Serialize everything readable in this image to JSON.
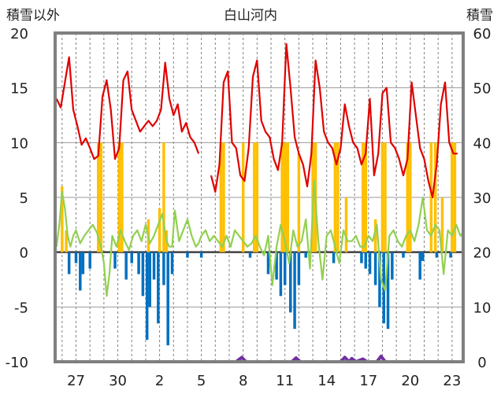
{
  "chart_data": {
    "type": "line",
    "title": "白山河内",
    "left_axis_title": "積雪以外",
    "right_axis_title": "積雪",
    "left_ylim": [
      -10,
      20
    ],
    "left_yticks": [
      "-10",
      "-5",
      "0",
      "5",
      "10",
      "15",
      "20"
    ],
    "right_ylim": [
      0,
      60
    ],
    "right_yticks": [
      "0",
      "10",
      "20",
      "30",
      "40",
      "50",
      "60"
    ],
    "x_tick_labels": [
      "27",
      "30",
      "2",
      "5",
      "8",
      "11",
      "14",
      "17",
      "20",
      "23"
    ],
    "x_range_days": [
      25.5,
      54.8
    ],
    "grid": "dashed vertical daily, solid horizontal",
    "colors": {
      "snow_depth": "#7030a0",
      "red_series": "#e00000",
      "orange_bars": "#ffc000",
      "green_series": "#92d050",
      "blue_bars": "#0070c0"
    },
    "series": [
      {
        "key": "red_series",
        "axis": "left",
        "points": [
          [
            25.6,
            14
          ],
          [
            25.9,
            13.2
          ],
          [
            26.2,
            15.5
          ],
          [
            26.5,
            17.8
          ],
          [
            26.8,
            13
          ],
          [
            27.1,
            11.5
          ],
          [
            27.4,
            9.8
          ],
          [
            27.7,
            10.4
          ],
          [
            28.0,
            9.5
          ],
          [
            28.3,
            8.5
          ],
          [
            28.6,
            8.8
          ],
          [
            28.9,
            14.2
          ],
          [
            29.2,
            15.7
          ],
          [
            29.5,
            13.0
          ],
          [
            29.8,
            8.5
          ],
          [
            30.1,
            9.5
          ],
          [
            30.4,
            15.7
          ],
          [
            30.7,
            16.5
          ],
          [
            31.0,
            13.0
          ],
          [
            31.3,
            12.0
          ],
          [
            31.6,
            11.0
          ],
          [
            31.9,
            11.5
          ],
          [
            32.2,
            12.0
          ],
          [
            32.5,
            11.5
          ],
          [
            32.8,
            12.0
          ],
          [
            33.1,
            13.0
          ],
          [
            33.4,
            17.3
          ],
          [
            33.7,
            14.0
          ],
          [
            34.0,
            12.5
          ],
          [
            34.3,
            13.5
          ],
          [
            34.6,
            11.0
          ],
          [
            34.9,
            11.8
          ],
          [
            35.2,
            10.5
          ],
          [
            35.5,
            10.0
          ],
          [
            35.8,
            9.0
          ],
          null,
          [
            36.7,
            7.0
          ],
          [
            37.0,
            5.5
          ],
          [
            37.3,
            8.0
          ],
          [
            37.6,
            15.5
          ],
          [
            37.9,
            16.5
          ],
          [
            38.2,
            10.0
          ],
          [
            38.5,
            9.5
          ],
          [
            38.8,
            7.0
          ],
          [
            39.1,
            6.5
          ],
          [
            39.4,
            9.5
          ],
          [
            39.7,
            16.0
          ],
          [
            40.0,
            17.5
          ],
          [
            40.3,
            12.0
          ],
          [
            40.6,
            11.0
          ],
          [
            40.9,
            10.5
          ],
          [
            41.2,
            8.5
          ],
          [
            41.5,
            7.5
          ],
          [
            41.8,
            10.0
          ],
          [
            42.1,
            19.0
          ],
          [
            42.4,
            15.0
          ],
          [
            42.7,
            10.5
          ],
          [
            43.0,
            9.0
          ],
          [
            43.3,
            8.0
          ],
          [
            43.6,
            6.0
          ],
          [
            43.9,
            9.0
          ],
          [
            44.2,
            17.5
          ],
          [
            44.5,
            15.0
          ],
          [
            44.8,
            11.0
          ],
          [
            45.1,
            10.0
          ],
          [
            45.4,
            9.5
          ],
          [
            45.7,
            8.0
          ],
          [
            46.0,
            9.5
          ],
          [
            46.3,
            13.5
          ],
          [
            46.6,
            11.5
          ],
          [
            46.9,
            10.0
          ],
          [
            47.2,
            9.5
          ],
          [
            47.5,
            8.0
          ],
          [
            47.8,
            9.0
          ],
          [
            48.1,
            14.0
          ],
          [
            48.4,
            7.0
          ],
          [
            48.7,
            9.0
          ],
          [
            49.0,
            14.5
          ],
          [
            49.3,
            15.0
          ],
          [
            49.6,
            10.0
          ],
          [
            49.9,
            9.5
          ],
          [
            50.2,
            8.5
          ],
          [
            50.5,
            7.0
          ],
          [
            50.8,
            8.5
          ],
          [
            51.1,
            15.5
          ],
          [
            51.4,
            12.5
          ],
          [
            51.7,
            9.5
          ],
          [
            52.0,
            8.5
          ],
          [
            52.3,
            6.5
          ],
          [
            52.6,
            5.0
          ],
          [
            52.9,
            8.0
          ],
          [
            53.2,
            13.5
          ],
          [
            53.5,
            15.5
          ],
          [
            53.8,
            10.0
          ],
          [
            54.1,
            9.0
          ],
          [
            54.4,
            9.0
          ]
        ]
      },
      {
        "key": "green_series",
        "axis": "left",
        "points": [
          [
            25.6,
            0.5
          ],
          [
            25.8,
            2.5
          ],
          [
            26.0,
            5.5
          ],
          [
            26.2,
            4.0
          ],
          [
            26.4,
            1.5
          ],
          [
            26.6,
            0.5
          ],
          [
            26.8,
            1.5
          ],
          [
            27.0,
            2.0
          ],
          [
            27.3,
            0.8
          ],
          [
            27.6,
            1.5
          ],
          [
            27.9,
            2.0
          ],
          [
            28.2,
            2.5
          ],
          [
            28.5,
            1.8
          ],
          [
            28.8,
            0.5
          ],
          [
            29.0,
            -1.0
          ],
          [
            29.2,
            -4.0
          ],
          [
            29.4,
            -2.0
          ],
          [
            29.6,
            1.5
          ],
          [
            29.9,
            0.5
          ],
          [
            30.2,
            2.0
          ],
          [
            30.5,
            1.0
          ],
          [
            30.8,
            0.2
          ],
          [
            31.1,
            1.5
          ],
          [
            31.4,
            2.0
          ],
          [
            31.7,
            1.0
          ],
          [
            32.0,
            2.5
          ],
          [
            32.3,
            0.8
          ],
          [
            32.6,
            1.5
          ],
          [
            32.9,
            2.5
          ],
          [
            33.2,
            3.5
          ],
          [
            33.5,
            1.0
          ],
          [
            33.7,
            0.5
          ],
          [
            33.9,
            0.5
          ],
          [
            34.1,
            3.8
          ],
          [
            34.4,
            1.0
          ],
          [
            34.7,
            2.0
          ],
          [
            35.0,
            3.0
          ],
          [
            35.3,
            1.5
          ],
          [
            35.6,
            0.5
          ],
          [
            35.8,
            0.8
          ],
          [
            36.0,
            1.5
          ],
          [
            36.3,
            2.0
          ],
          [
            36.6,
            1.0
          ],
          [
            36.9,
            1.5
          ],
          [
            37.2,
            1.0
          ],
          [
            37.5,
            0.5
          ],
          [
            37.8,
            1.5
          ],
          [
            38.1,
            0.5
          ],
          [
            38.4,
            2.0
          ],
          [
            38.7,
            1.5
          ],
          [
            39.0,
            1.0
          ],
          [
            39.3,
            0.5
          ],
          [
            39.6,
            0.8
          ],
          [
            39.9,
            1.5
          ],
          [
            40.2,
            0.5
          ],
          [
            40.5,
            -0.3
          ],
          [
            40.8,
            1.5
          ],
          [
            41.1,
            -3.0
          ],
          [
            41.4,
            0.5
          ],
          [
            41.7,
            2.5
          ],
          [
            42.0,
            1.0
          ],
          [
            42.3,
            -1.0
          ],
          [
            42.6,
            2.0
          ],
          [
            42.9,
            0.5
          ],
          [
            43.2,
            1.0
          ],
          [
            43.5,
            3.0
          ],
          [
            43.8,
            -1.5
          ],
          [
            44.1,
            6.5
          ],
          [
            44.4,
            1.0
          ],
          [
            44.7,
            -2.5
          ],
          [
            45.0,
            1.5
          ],
          [
            45.3,
            2.0
          ],
          [
            45.6,
            0.5
          ],
          [
            45.9,
            -1.0
          ],
          [
            46.2,
            2.0
          ],
          [
            46.5,
            1.0
          ],
          [
            46.8,
            1.0
          ],
          [
            47.1,
            1.5
          ],
          [
            47.4,
            0.5
          ],
          [
            47.7,
            0.5
          ],
          [
            48.0,
            1.5
          ],
          [
            48.3,
            1.0
          ],
          [
            48.6,
            2.5
          ],
          [
            48.9,
            -2.5
          ],
          [
            49.2,
            -3.5
          ],
          [
            49.5,
            1.5
          ],
          [
            49.8,
            2.0
          ],
          [
            50.1,
            1.0
          ],
          [
            50.4,
            0.5
          ],
          [
            50.7,
            1.5
          ],
          [
            51.0,
            2.0
          ],
          [
            51.3,
            1.0
          ],
          [
            51.6,
            2.5
          ],
          [
            51.9,
            5.0
          ],
          [
            52.2,
            2.0
          ],
          [
            52.5,
            1.5
          ],
          [
            52.8,
            2.5
          ],
          [
            53.1,
            2.0
          ],
          [
            53.4,
            -2.0
          ],
          [
            53.7,
            2.0
          ],
          [
            54.0,
            1.5
          ],
          [
            54.3,
            2.5
          ],
          [
            54.6,
            1.5
          ],
          [
            54.8,
            1.8
          ]
        ]
      },
      {
        "key": "snow_depth",
        "axis": "right",
        "points": [
          [
            36.8,
            0
          ],
          [
            38.5,
            0
          ],
          [
            38.9,
            0.8
          ],
          [
            39.2,
            0
          ],
          [
            42.5,
            0
          ],
          [
            42.8,
            0.7
          ],
          [
            43.1,
            0
          ],
          [
            46.0,
            0
          ],
          [
            46.3,
            0.8
          ],
          [
            46.6,
            0
          ],
          [
            46.8,
            0.6
          ],
          [
            47.1,
            0
          ],
          [
            47.6,
            0.5
          ],
          [
            47.9,
            0
          ],
          [
            48.6,
            0
          ],
          [
            48.9,
            1.0
          ],
          [
            49.2,
            0
          ],
          [
            54.8,
            0
          ]
        ]
      }
    ],
    "bars": [
      {
        "key": "orange_bars",
        "axis": "left",
        "points": [
          [
            26.0,
            6.0
          ],
          [
            26.3,
            2.0
          ],
          [
            28.6,
            10.0
          ],
          [
            28.8,
            10.0
          ],
          [
            30.1,
            10.0
          ],
          [
            30.3,
            10.0
          ],
          [
            32.2,
            3.0
          ],
          [
            33.0,
            4.0
          ],
          [
            33.3,
            10.0
          ],
          [
            33.5,
            2.0
          ],
          [
            37.4,
            10.0
          ],
          [
            37.6,
            10.0
          ],
          [
            39.0,
            10.0
          ],
          [
            39.8,
            10.0
          ],
          [
            40.0,
            10.0
          ],
          [
            41.8,
            10.0
          ],
          [
            42.0,
            10.0
          ],
          [
            42.2,
            10.0
          ],
          [
            43.0,
            9.0
          ],
          [
            44.0,
            10.0
          ],
          [
            44.2,
            10.0
          ],
          [
            45.6,
            10.0
          ],
          [
            45.8,
            10.0
          ],
          [
            46.4,
            5.0
          ],
          [
            47.6,
            10.0
          ],
          [
            47.8,
            10.0
          ],
          [
            48.5,
            3.0
          ],
          [
            49.0,
            10.0
          ],
          [
            49.2,
            10.0
          ],
          [
            50.8,
            10.0
          ],
          [
            51.0,
            10.0
          ],
          [
            52.5,
            10.0
          ],
          [
            52.8,
            10.0
          ],
          [
            53.3,
            5.0
          ],
          [
            54.0,
            10.0
          ],
          [
            54.2,
            10.0
          ]
        ]
      },
      {
        "key": "blue_bars",
        "axis": "left",
        "points": [
          [
            26.5,
            -2.0
          ],
          [
            27.0,
            -1.0
          ],
          [
            27.3,
            -3.5
          ],
          [
            27.5,
            -2.0
          ],
          [
            28.0,
            -1.5
          ],
          [
            29.8,
            -1.5
          ],
          [
            30.6,
            -2.5
          ],
          [
            31.0,
            -1.0
          ],
          [
            31.5,
            -2.0
          ],
          [
            31.8,
            -4.0
          ],
          [
            32.1,
            -8.0
          ],
          [
            32.3,
            -5.0
          ],
          [
            32.6,
            -2.5
          ],
          [
            32.9,
            -6.5
          ],
          [
            33.3,
            -3.0
          ],
          [
            33.6,
            -8.5
          ],
          [
            33.9,
            -2.0
          ],
          [
            35.0,
            -0.5
          ],
          [
            36.0,
            -0.5
          ],
          [
            39.5,
            -0.5
          ],
          [
            40.8,
            -2.0
          ],
          [
            41.4,
            -2.5
          ],
          [
            41.7,
            -4.0
          ],
          [
            42.0,
            -3.0
          ],
          [
            42.4,
            -5.5
          ],
          [
            42.7,
            -7.0
          ],
          [
            43.0,
            -3.0
          ],
          [
            43.5,
            -0.5
          ],
          [
            45.5,
            -1.0
          ],
          [
            47.5,
            -1.0
          ],
          [
            47.8,
            -1.5
          ],
          [
            48.1,
            -2.0
          ],
          [
            48.5,
            -3.0
          ],
          [
            48.8,
            -5.0
          ],
          [
            49.1,
            -6.5
          ],
          [
            49.4,
            -7.0
          ],
          [
            49.7,
            -2.5
          ],
          [
            50.5,
            -0.5
          ],
          [
            51.7,
            -2.5
          ],
          [
            51.9,
            -0.8
          ],
          [
            52.9,
            -0.5
          ],
          [
            53.9,
            -0.5
          ]
        ]
      }
    ]
  }
}
